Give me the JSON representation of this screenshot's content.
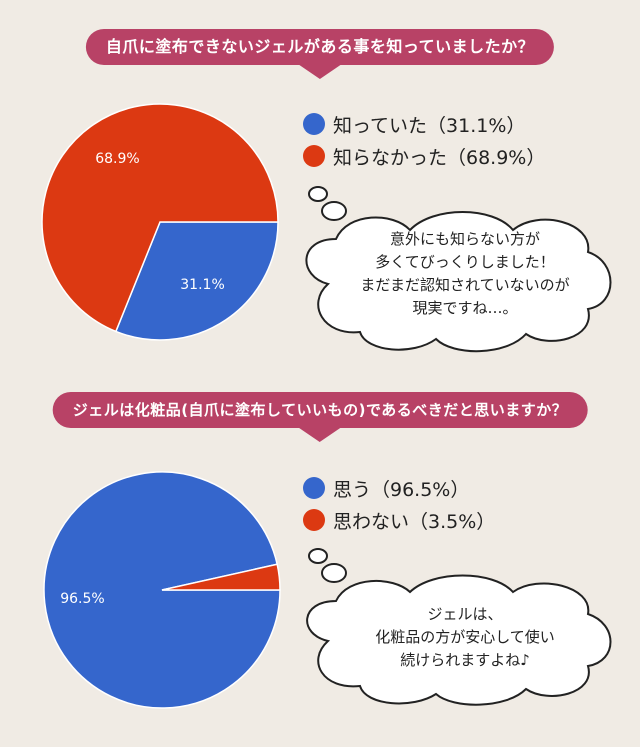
{
  "colors": {
    "banner": "#b84266",
    "blue": "#3566cc",
    "red": "#dc3912",
    "background": "#f0ebe4"
  },
  "section1": {
    "question": "自爪に塗布できないジェルがある事を知っていましたか？",
    "legend": [
      {
        "label": "知っていた（31.1%）",
        "color": "#3566cc"
      },
      {
        "label": "知らなかった（68.9%）",
        "color": "#dc3912"
      }
    ],
    "bubble_text": "意外にも知らない方が\n多くてびっくりしました！\nまだまだ認知されていないのが\n現実ですね…。"
  },
  "section2": {
    "question": "ジェルは化粧品(自爪に塗布していいもの)であるべきだと思いますか？",
    "legend": [
      {
        "label": "思う（96.5%）",
        "color": "#3566cc"
      },
      {
        "label": "思わない（3.5%）",
        "color": "#dc3912"
      }
    ],
    "bubble_text": "ジェルは、\n化粧品の方が安心して使い\n続けられますよね♪"
  },
  "chart_data": [
    {
      "type": "pie",
      "title": "自爪に塗布できないジェルがある事を知っていましたか？",
      "categories": [
        "知っていた",
        "知らなかった"
      ],
      "values": [
        31.1,
        68.9
      ],
      "data_labels": [
        "31.1%",
        "68.9%"
      ],
      "colors": [
        "#3566cc",
        "#dc3912"
      ],
      "legend": "right"
    },
    {
      "type": "pie",
      "title": "ジェルは化粧品(自爪に塗布していいもの)であるべきだと思いますか？",
      "categories": [
        "思う",
        "思わない"
      ],
      "values": [
        96.5,
        3.5
      ],
      "data_labels": [
        "96.5%",
        ""
      ],
      "colors": [
        "#3566cc",
        "#dc3912"
      ],
      "legend": "right"
    }
  ]
}
